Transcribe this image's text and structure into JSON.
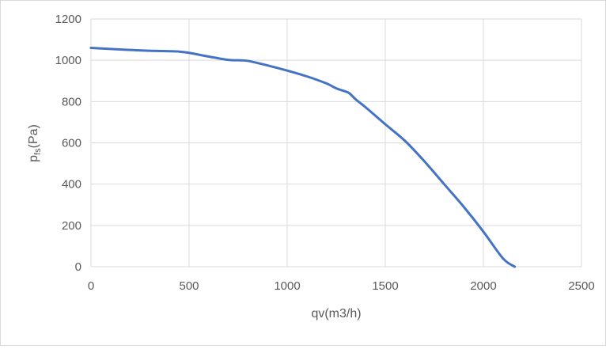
{
  "chart_data": {
    "type": "line",
    "title": "",
    "xlabel": "qv(m3/h)",
    "ylabel": {
      "main": "p",
      "sub": "fs",
      "unit": "(Pa)"
    },
    "xlim": [
      0,
      2500
    ],
    "ylim": [
      0,
      1200
    ],
    "xticks": [
      0,
      500,
      1000,
      1500,
      2000,
      2500
    ],
    "yticks": [
      0,
      200,
      400,
      600,
      800,
      1000,
      1200
    ],
    "grid": true,
    "legend": "none",
    "series": [
      {
        "color": "#4472c4",
        "x": [
          0,
          100,
          200,
          300,
          400,
          450,
          500,
          600,
          700,
          750,
          800,
          900,
          1000,
          1100,
          1200,
          1250,
          1300,
          1320,
          1350,
          1400,
          1500,
          1600,
          1700,
          1800,
          1900,
          2000,
          2100,
          2160
        ],
        "y": [
          1060,
          1055,
          1050,
          1046,
          1044,
          1042,
          1036,
          1018,
          1002,
          1000,
          997,
          975,
          950,
          922,
          888,
          864,
          848,
          838,
          810,
          772,
          690,
          610,
          510,
          400,
          290,
          170,
          40,
          0
        ]
      }
    ]
  }
}
